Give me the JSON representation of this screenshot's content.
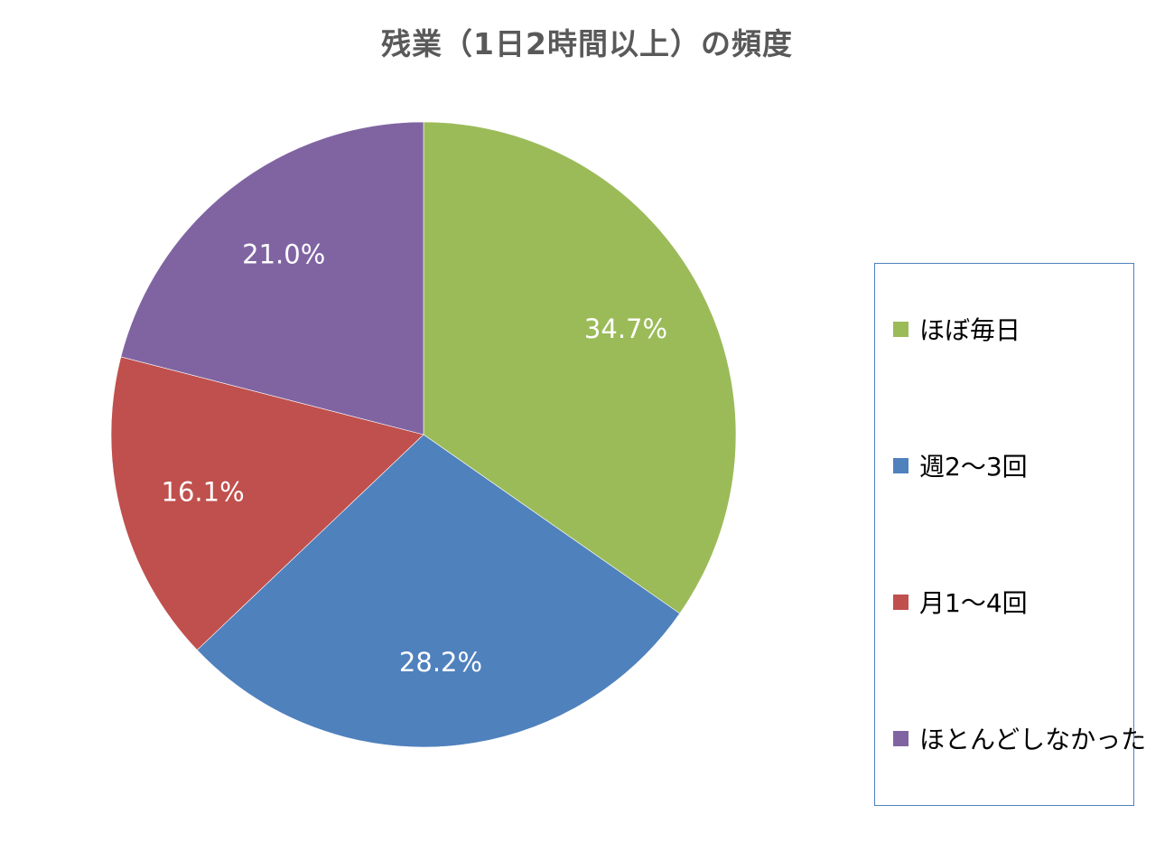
{
  "chart_data": {
    "type": "pie",
    "title": "残業（1日2時間以上）の頻度",
    "categories": [
      "ほぼ毎日",
      "週2～3回",
      "月1～4回",
      "ほとんどしなかった"
    ],
    "values": [
      34.7,
      28.2,
      16.1,
      21.0
    ],
    "labels": [
      "34.7%",
      "28.2%",
      "16.1%",
      "21.0%"
    ],
    "colors": [
      "#9bbb59",
      "#4f81bd",
      "#c0504d",
      "#8064a2"
    ],
    "start": "12 o'clock",
    "direction": "clockwise",
    "legend_position": "right"
  }
}
